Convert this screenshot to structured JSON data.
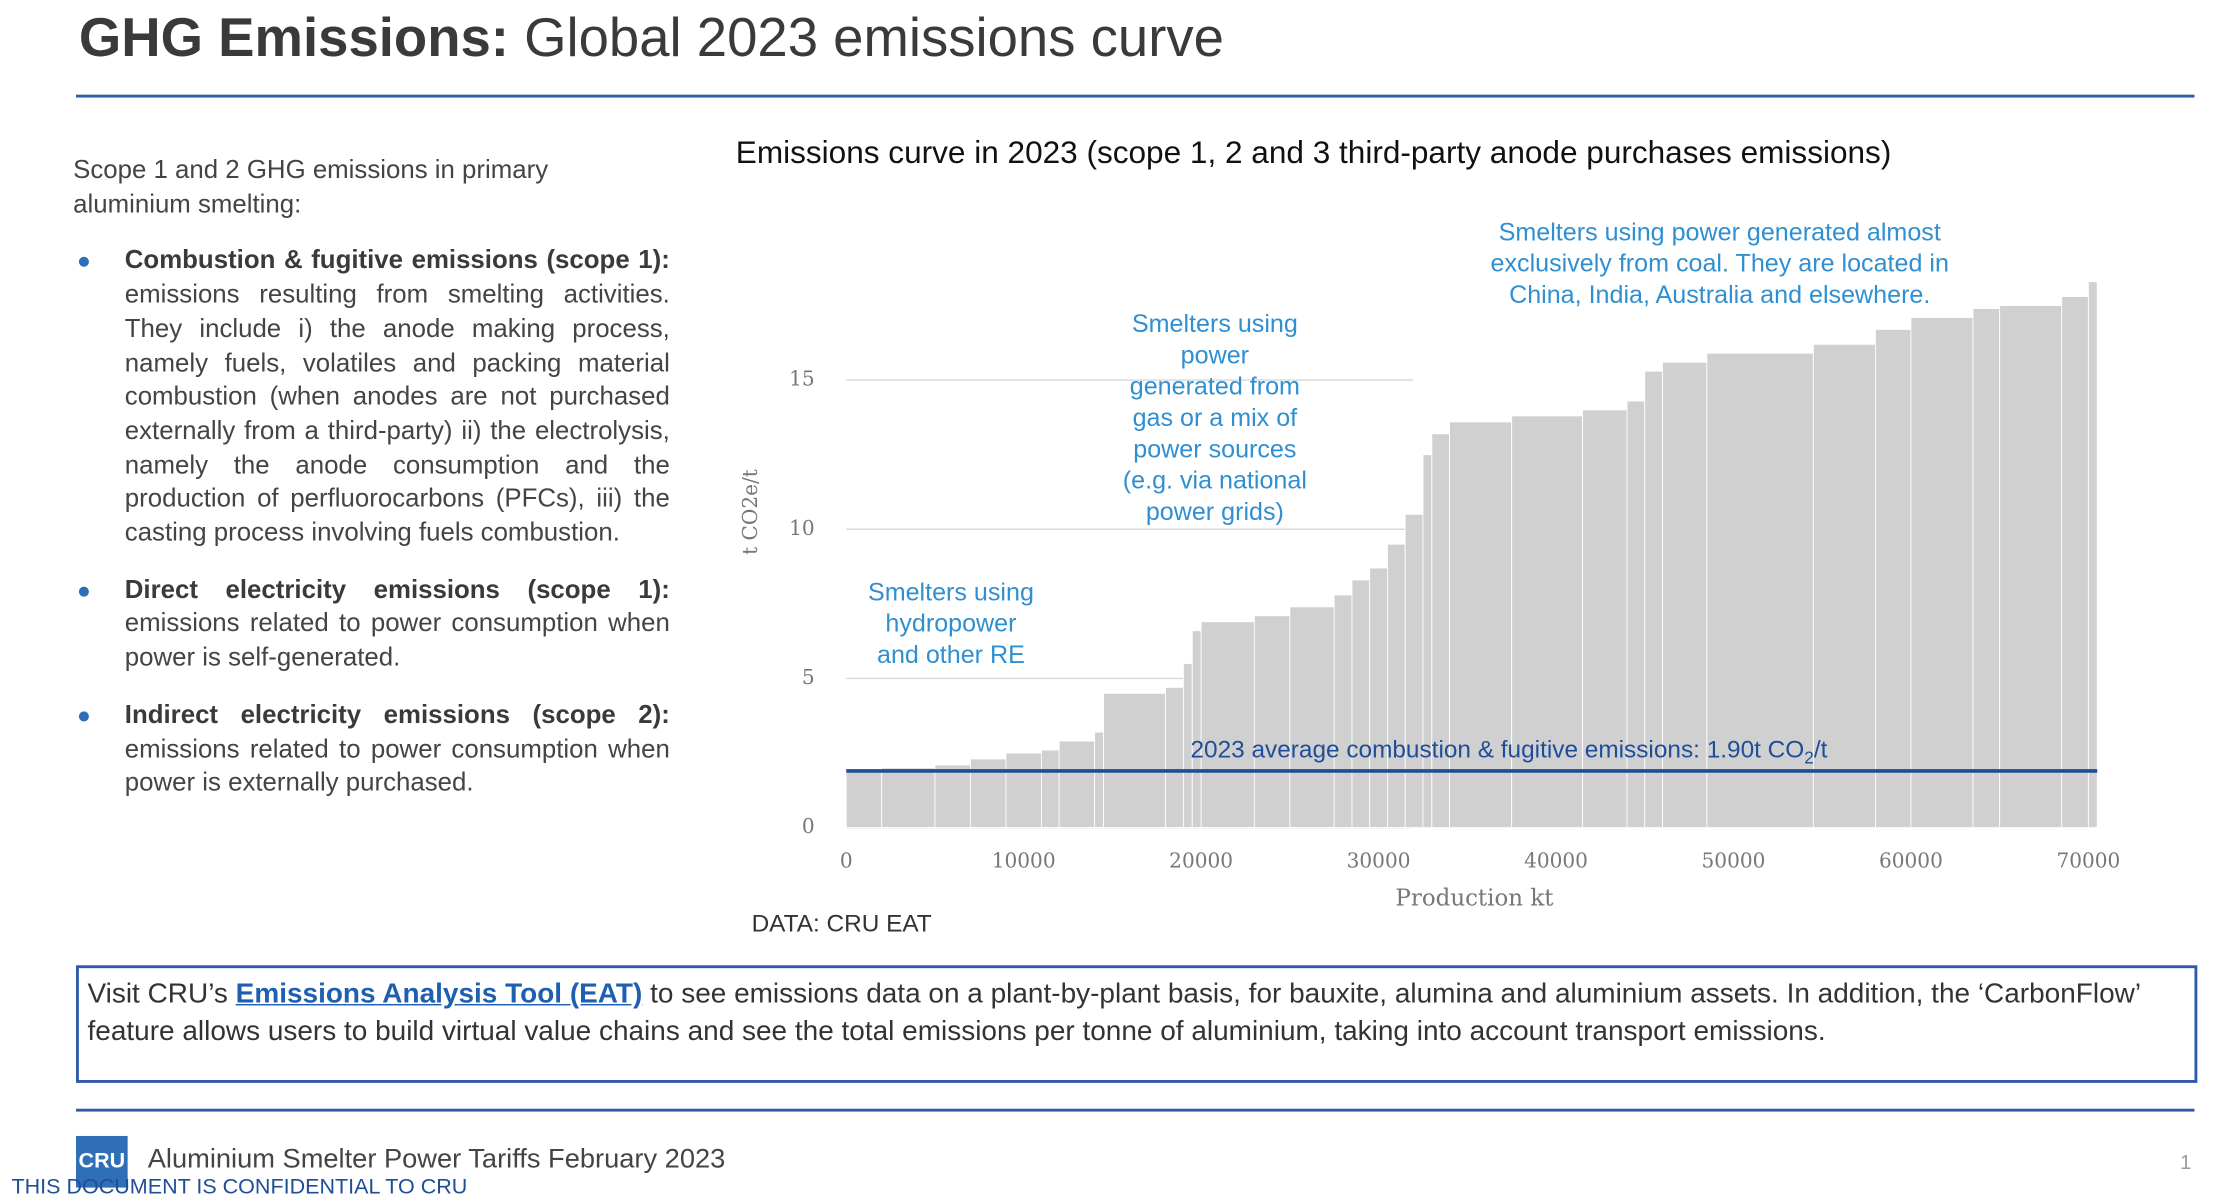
{
  "header": {
    "title_bold": "GHG Emissions:",
    "title_rest": "Global 2023 emissions curve"
  },
  "left_panel": {
    "intro": "Scope 1 and 2 GHG emissions in primary aluminium smelting:",
    "bullets": [
      {
        "heading": "Combustion & fugitive emissions (scope 1):",
        "text": "emissions resulting from smelting activities. They include i) the anode making process, namely fuels, volatiles and packing material combustion (when anodes are not purchased externally from a third-party) ii) the electrolysis, namely the anode consumption and the production of perfluorocarbons (PFCs), iii) the casting process involving fuels combustion."
      },
      {
        "heading": "Direct electricity emissions (scope 1):",
        "text": "emissions related to power consumption when power is self-generated."
      },
      {
        "heading": "Indirect electricity emissions (scope 2):",
        "text": "emissions related to power consumption when power is externally purchased."
      }
    ]
  },
  "chart_data": {
    "type": "histogram",
    "title": "Emissions curve in 2023 (scope 1, 2 and 3 third-party anode purchases emissions)",
    "source": "DATA: CRU EAT",
    "y_label": "t CO2e/t",
    "x_label": "Production kt",
    "bins": [
      0,
      2000,
      5000,
      7000,
      9000,
      11000,
      12000,
      14000,
      14500,
      18000,
      19000,
      19500,
      20000,
      23000,
      25000,
      27500,
      28500,
      29500,
      30500,
      31500,
      32500,
      33000,
      34000,
      37500,
      41500,
      44000,
      45000,
      46000,
      48500,
      54500,
      58000,
      60000,
      63500,
      65000,
      68500,
      70000,
      70500
    ],
    "values": [
      1.9,
      2.0,
      2.1,
      2.3,
      2.5,
      2.6,
      2.9,
      3.2,
      4.5,
      4.7,
      5.5,
      6.6,
      6.9,
      7.1,
      7.4,
      7.8,
      8.3,
      8.7,
      9.5,
      10.5,
      12.5,
      13.2,
      13.6,
      13.8,
      14.0,
      14.3,
      15.3,
      15.6,
      15.9,
      16.2,
      16.7,
      17.1,
      17.4,
      17.5,
      17.8,
      18.3
    ],
    "color": "#d0d0d0",
    "xlim": [
      -500,
      71000
    ],
    "ylim": [
      0,
      19.5
    ],
    "xticks": [
      0,
      10000,
      20000,
      30000,
      40000,
      50000,
      60000,
      70000
    ],
    "yticks": [
      0,
      5,
      10,
      15
    ],
    "grid": true,
    "reference_line": {
      "value": 1.9,
      "color": "#1f4e99",
      "label": [
        "2023 average combustion & fugitive emissions: 1.90t CO",
        "2",
        "/t"
      ]
    },
    "annotations": [
      {
        "lines": [
          "Smelters using",
          "hydropower",
          "and other RE"
        ],
        "color": "#2f8fd1"
      },
      {
        "lines": [
          "Smelters using",
          "power",
          "generated from",
          "gas or a mix of",
          "power sources",
          "(e.g. via national",
          "power grids)"
        ],
        "color": "#2f8fd1"
      },
      {
        "lines": [
          "Smelters using power generated almost",
          "exclusively from coal. They are located in",
          "China, India, Australia and elsewhere."
        ],
        "color": "#2f8fd1"
      }
    ]
  },
  "callout": {
    "before": "Visit CRU’s",
    "link": "Emissions Analysis Tool (EAT)",
    "after": "to see emissions data on a plant-by-plant basis, for bauxite, alumina and aluminium assets. In addition, the ‘CarbonFlow’ feature allows users to build virtual value chains and see the total emissions per tonne of aluminium, taking into account transport emissions."
  },
  "footer": {
    "logo": "CRU",
    "report": "Aluminium Smelter Power Tariffs February 2023",
    "page": 1,
    "confidential": "THIS DOCUMENT IS CONFIDENTIAL TO CRU"
  }
}
